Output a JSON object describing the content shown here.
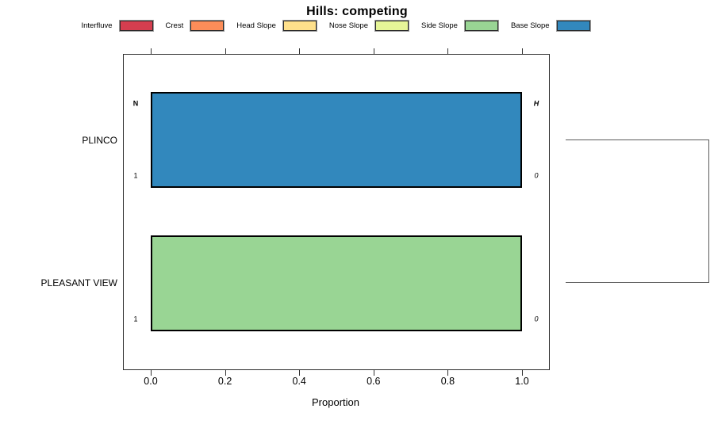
{
  "chart_data": {
    "type": "bar",
    "orientation": "horizontal",
    "title": "Hills: competing",
    "xlabel": "Proportion",
    "xlim": [
      -0.073,
      1.072
    ],
    "xticks": [
      0.0,
      0.2,
      0.4,
      0.6,
      0.8,
      1.0
    ],
    "xtick_labels": [
      "0.0",
      "0.2",
      "0.4",
      "0.6",
      "0.8",
      "1.0"
    ],
    "grid": false,
    "categories": [
      "PLINCO",
      "PLEASANT VIEW"
    ],
    "legend": {
      "position": "top",
      "entries": [
        {
          "label": "Interfluve",
          "color": "#D53E4F"
        },
        {
          "label": "Crest",
          "color": "#FC8D59"
        },
        {
          "label": "Head Slope",
          "color": "#FEE08B"
        },
        {
          "label": "Nose Slope",
          "color": "#E6F598"
        },
        {
          "label": "Side Slope",
          "color": "#99D594"
        },
        {
          "label": "Base Slope",
          "color": "#3288BD"
        }
      ]
    },
    "bars": [
      {
        "category": "PLINCO",
        "segment": "Base Slope",
        "value": 1.0,
        "color": "#3288BD",
        "annotations": {
          "top_left": "N",
          "top_right": "H",
          "bottom_left": "1",
          "bottom_right": "0"
        }
      },
      {
        "category": "PLEASANT VIEW",
        "segment": "Side Slope",
        "value": 1.0,
        "color": "#99D594",
        "annotations": {
          "bottom_left": "1",
          "bottom_right": "0"
        }
      }
    ],
    "cluster_bracket": {
      "side": "right",
      "connects": [
        "PLINCO",
        "PLEASANT VIEW"
      ]
    }
  }
}
